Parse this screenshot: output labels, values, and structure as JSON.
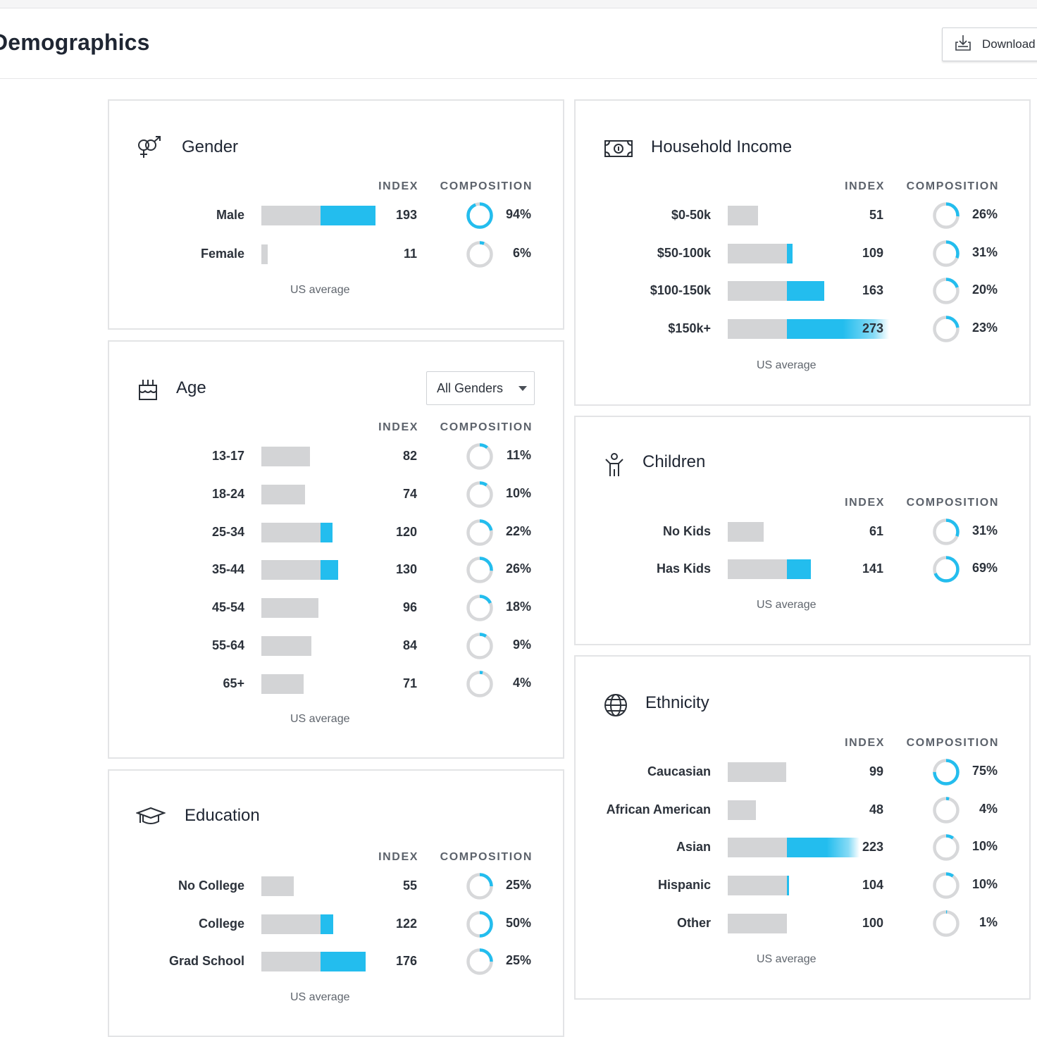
{
  "page": {
    "title": "Demographics",
    "download_label": "Download"
  },
  "headers": {
    "index": "INDEX",
    "composition": "COMPOSITION"
  },
  "us_average": "US average",
  "colors": {
    "accent": "#23bdee",
    "bar_gray": "#d3d4d6",
    "ring_gray": "#d7d8da"
  },
  "cards": [
    {
      "key": "gender",
      "title": "Gender",
      "icon": "gender-icon",
      "rows": [
        {
          "label": "Male",
          "index": 193,
          "composition": "94%",
          "fraction": 0.94
        },
        {
          "label": "Female",
          "index": 11,
          "composition": "6%",
          "fraction": 0.06
        }
      ]
    },
    {
      "key": "age",
      "title": "Age",
      "icon": "birthday-cake-icon",
      "filter": {
        "value": "All Genders"
      },
      "rows": [
        {
          "label": "13-17",
          "index": 82,
          "composition": "11%",
          "fraction": 0.11
        },
        {
          "label": "18-24",
          "index": 74,
          "composition": "10%",
          "fraction": 0.1
        },
        {
          "label": "25-34",
          "index": 120,
          "composition": "22%",
          "fraction": 0.22
        },
        {
          "label": "35-44",
          "index": 130,
          "composition": "26%",
          "fraction": 0.26
        },
        {
          "label": "45-54",
          "index": 96,
          "composition": "18%",
          "fraction": 0.18
        },
        {
          "label": "55-64",
          "index": 84,
          "composition": "9%",
          "fraction": 0.09
        },
        {
          "label": "65+",
          "index": 71,
          "composition": "4%",
          "fraction": 0.04
        }
      ]
    },
    {
      "key": "education",
      "title": "Education",
      "icon": "graduation-cap-icon",
      "rows": [
        {
          "label": "No College",
          "index": 55,
          "composition": "25%",
          "fraction": 0.25
        },
        {
          "label": "College",
          "index": 122,
          "composition": "50%",
          "fraction": 0.5
        },
        {
          "label": "Grad School",
          "index": 176,
          "composition": "25%",
          "fraction": 0.25
        }
      ]
    },
    {
      "key": "income",
      "title": "Household Income",
      "icon": "money-bill-icon",
      "rows": [
        {
          "label": "$0-50k",
          "index": 51,
          "composition": "26%",
          "fraction": 0.26
        },
        {
          "label": "$50-100k",
          "index": 109,
          "composition": "31%",
          "fraction": 0.31
        },
        {
          "label": "$100-150k",
          "index": 163,
          "composition": "20%",
          "fraction": 0.2
        },
        {
          "label": "$150k+",
          "index": 273,
          "composition": "23%",
          "fraction": 0.23
        }
      ]
    },
    {
      "key": "children",
      "title": "Children",
      "icon": "child-icon",
      "rows": [
        {
          "label": "No Kids",
          "index": 61,
          "composition": "31%",
          "fraction": 0.31
        },
        {
          "label": "Has Kids",
          "index": 141,
          "composition": "69%",
          "fraction": 0.69
        }
      ]
    },
    {
      "key": "ethnicity",
      "title": "Ethnicity",
      "icon": "globe-icon",
      "rows": [
        {
          "label": "Caucasian",
          "index": 99,
          "composition": "75%",
          "fraction": 0.75
        },
        {
          "label": "African American",
          "index": 48,
          "composition": "4%",
          "fraction": 0.04
        },
        {
          "label": "Asian",
          "index": 223,
          "composition": "10%",
          "fraction": 0.1
        },
        {
          "label": "Hispanic",
          "index": 104,
          "composition": "10%",
          "fraction": 0.1
        },
        {
          "label": "Other",
          "index": 100,
          "composition": "1%",
          "fraction": 0.01
        }
      ]
    }
  ]
}
